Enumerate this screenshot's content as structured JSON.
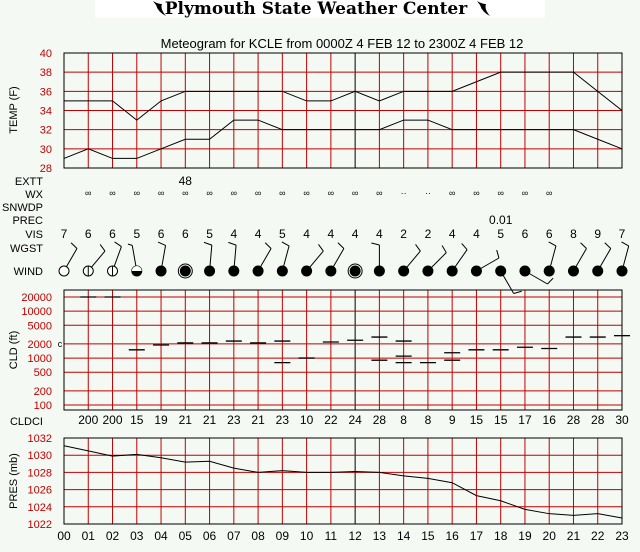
{
  "header": {
    "title": "Plymouth State Weather Center",
    "icon": "tornado-icon"
  },
  "colors": {
    "background": "#f4f9f4",
    "grid": "#c00000",
    "axis_label": "#c00000",
    "line": "#000000"
  },
  "chart_data": [
    {
      "type": "line",
      "title": "Meteogram for KCLE from 0000Z  4 FEB 12 to 2300Z  4 FEB 12",
      "ylabel": "TEMP (F)",
      "ylim": [
        28,
        40
      ],
      "yticks": [
        "28",
        "30",
        "32",
        "34",
        "36",
        "38",
        "40"
      ],
      "grid": true,
      "x": [
        0,
        1,
        2,
        3,
        4,
        5,
        6,
        7,
        8,
        9,
        10,
        11,
        12,
        13,
        14,
        15,
        16,
        17,
        18,
        19,
        20,
        21,
        22,
        23
      ],
      "series": [
        {
          "values": [
            35,
            35,
            35,
            33,
            35,
            36,
            36,
            36,
            36,
            36,
            35,
            35,
            36,
            35,
            36,
            36,
            36,
            37,
            38,
            38,
            38,
            38,
            36,
            34
          ]
        },
        {
          "values": [
            29,
            30,
            29,
            29,
            30,
            31,
            31,
            33,
            33,
            32,
            32,
            32,
            32,
            32,
            33,
            33,
            32,
            32,
            32,
            32,
            32,
            32,
            31,
            30
          ]
        }
      ]
    },
    {
      "type": "table",
      "rows": {
        "EXTT": {
          "label": "EXTT",
          "values": [
            "",
            "",
            "",
            "",
            "",
            "48",
            "",
            "",
            "",
            "",
            "",
            "",
            "",
            "",
            "",
            "",
            "",
            "",
            "",
            "",
            "",
            "",
            "",
            ""
          ]
        },
        "WX": {
          "label": "WX",
          "values": [
            "",
            "∞",
            "∞",
            "∞",
            "∞",
            "∞",
            "∞",
            "∞",
            "∞",
            "∞",
            "∞",
            "∞",
            "∞",
            "∞",
            "··",
            "··",
            "∞",
            "∞",
            "∞",
            "∞",
            "∞",
            "",
            "",
            ""
          ]
        },
        "SNWDP": {
          "label": "SNWDP",
          "values": []
        },
        "PREC": {
          "label": "PREC",
          "values": [
            "",
            "",
            "",
            "",
            "",
            "",
            "",
            "",
            "",
            "",
            "",
            "",
            "",
            "",
            "",
            "",
            "",
            "",
            "0.01",
            "",
            "",
            "",
            "",
            ""
          ]
        },
        "VIS": {
          "label": "VIS",
          "values": [
            "7",
            "6",
            "6",
            "5",
            "6",
            "6",
            "5",
            "4",
            "4",
            "5",
            "4",
            "4",
            "4",
            "4",
            "2",
            "2",
            "4",
            "4",
            "5",
            "6",
            "6",
            "8",
            "9",
            "7"
          ]
        },
        "WGST": {
          "label": "WGST",
          "values": []
        },
        "WIND": {
          "label": "WIND",
          "direction_deg": [
            30,
            40,
            20,
            350,
            10,
            0,
            5,
            5,
            30,
            15,
            40,
            30,
            0,
            0,
            40,
            45,
            35,
            60,
            150,
            120,
            15,
            30,
            30,
            15
          ],
          "speed_kt": [
            10,
            10,
            10,
            5,
            10,
            0,
            10,
            10,
            10,
            10,
            10,
            10,
            0,
            10,
            10,
            10,
            10,
            10,
            10,
            10,
            10,
            10,
            10,
            10
          ],
          "sky_cover": [
            "clear",
            "scattered",
            "scattered",
            "broken",
            "overcast",
            "obscured",
            "overcast",
            "overcast",
            "overcast",
            "overcast",
            "overcast",
            "overcast",
            "obscured",
            "overcast",
            "overcast",
            "overcast",
            "overcast",
            "overcast",
            "overcast",
            "overcast",
            "overcast",
            "overcast",
            "overcast",
            "overcast"
          ]
        }
      }
    },
    {
      "type": "scatter",
      "ylabel": "CLD (ft)",
      "yscale": "log",
      "ylim": [
        100,
        20000
      ],
      "yticks": [
        "100",
        "200",
        "500",
        "1000",
        "2000",
        "5000",
        "10000",
        "20000"
      ],
      "grid": true,
      "left_marker": "c",
      "layers": [
        [
          1,
          20000
        ],
        [
          2,
          20000
        ],
        [
          3,
          1500
        ],
        [
          4,
          1900
        ],
        [
          5,
          2100
        ],
        [
          6,
          2100
        ],
        [
          7,
          2300
        ],
        [
          8,
          2100
        ],
        [
          9,
          2300
        ],
        [
          9,
          800
        ],
        [
          10,
          1000
        ],
        [
          11,
          2200
        ],
        [
          12,
          2400
        ],
        [
          13,
          2800
        ],
        [
          13,
          900
        ],
        [
          14,
          2300
        ],
        [
          14,
          1100
        ],
        [
          14,
          800
        ],
        [
          15,
          800
        ],
        [
          16,
          1300
        ],
        [
          16,
          900
        ],
        [
          17,
          1500
        ],
        [
          18,
          1500
        ],
        [
          19,
          1700
        ],
        [
          20,
          1600
        ],
        [
          21,
          2800
        ],
        [
          22,
          2800
        ],
        [
          23,
          3000
        ]
      ],
      "cldci_label": "CLDCI",
      "cldci": [
        "",
        "200",
        "200",
        "15",
        "19",
        "21",
        "21",
        "23",
        "21",
        "23",
        "10",
        "22",
        "24",
        "28",
        "8",
        "8",
        "9",
        "15",
        "15",
        "17",
        "16",
        "28",
        "28",
        "30"
      ]
    },
    {
      "type": "line",
      "ylabel": "PRES (mb)",
      "ylim": [
        1022,
        1032
      ],
      "yticks": [
        "1022",
        "1024",
        "1026",
        "1028",
        "1030",
        "1032"
      ],
      "grid": true,
      "xticks": [
        "00",
        "01",
        "02",
        "03",
        "04",
        "05",
        "06",
        "07",
        "08",
        "09",
        "10",
        "11",
        "12",
        "13",
        "14",
        "15",
        "16",
        "17",
        "18",
        "19",
        "20",
        "21",
        "22",
        "23"
      ],
      "series": [
        {
          "values": [
            1031.1,
            1030.5,
            1029.9,
            1030.1,
            1029.7,
            1029.2,
            1029.3,
            1028.5,
            1028.0,
            1028.2,
            1028.0,
            1028.0,
            1028.1,
            1028.0,
            1027.6,
            1027.3,
            1026.8,
            1025.3,
            1024.7,
            1023.7,
            1023.2,
            1023.0,
            1023.2,
            1022.7
          ]
        }
      ]
    }
  ]
}
